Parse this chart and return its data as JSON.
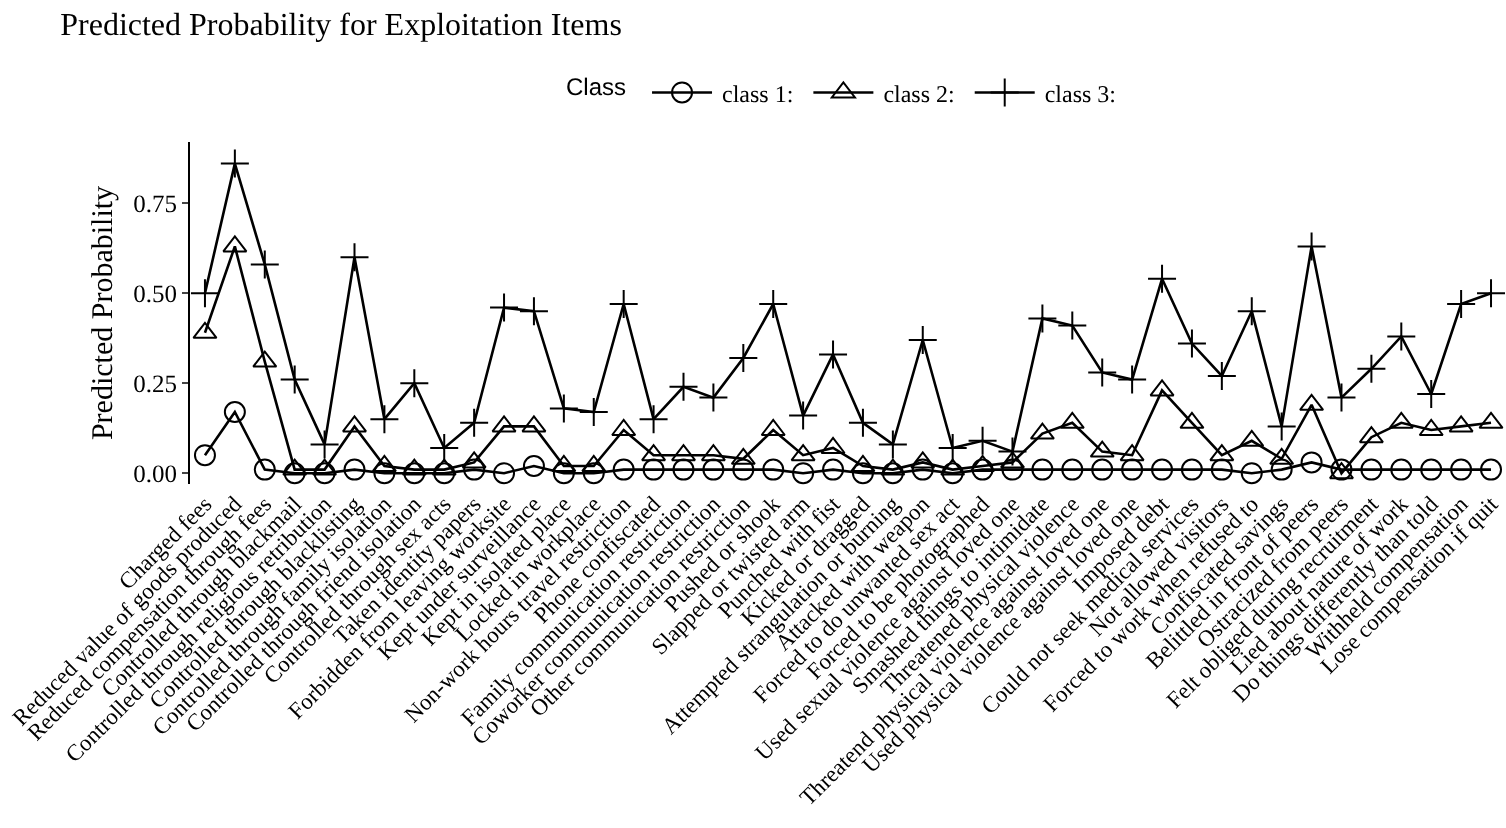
{
  "chart_data": {
    "type": "line",
    "title": "Predicted Probability for Exploitation Items",
    "ylabel": "Predicted Probability",
    "legend_title": "Class",
    "legend": "top",
    "grid": false,
    "categories": [
      "Charged fees",
      "Reduced value of goods produced",
      "Reduced compensation through fees",
      "Controlled through blackmail",
      "Controlled through religious retribution",
      "Controlled through blacklisting",
      "Controlled through family isolation",
      "Controlled through friend isolation",
      "Controlled through sex acts",
      "Taken identity papers",
      "Forbidden from leaving worksite",
      "Kept under surveillance",
      "Kept in isolated place",
      "Locked in workplace",
      "Non-work hours travel restriction",
      "Phone confiscated",
      "Family communication restriction",
      "Coworker communication restriction",
      "Other communication restriction",
      "Pushed or shook",
      "Slapped or twisted arm",
      "Punched with fist",
      "Kicked or dragged",
      "Attempted strangulation or burning",
      "Attacked with weapon",
      "Forced to do unwanted sex act",
      "Forced to be photographed",
      "Used sexual violence against loved one",
      "Smashed things to intimidate",
      "Threatened physical violence",
      "Threatend physical violence against loved one",
      "Used physical violence against loved one",
      "Imposed debt",
      "Could not seek medical services",
      "Not allowed visitors",
      "Forced to work when refused to",
      "Confiscated savings",
      "Belittled in front of peers",
      "Ostracized from peers",
      "Felt obliged during recruitment",
      "Lied about nature of work",
      "Do things differently than told",
      "Withheld compensation",
      "Lose compensation if quit"
    ],
    "series": [
      {
        "name": "class 1:",
        "color": "#000000",
        "marker": "circle",
        "values": [
          0.05,
          0.17,
          0.01,
          0.0,
          0.0,
          0.01,
          0.0,
          0.0,
          0.0,
          0.01,
          0.0,
          0.02,
          0.0,
          0.0,
          0.01,
          0.01,
          0.01,
          0.01,
          0.01,
          0.01,
          0.0,
          0.01,
          0.0,
          0.0,
          0.01,
          0.0,
          0.01,
          0.01,
          0.01,
          0.01,
          0.01,
          0.01,
          0.01,
          0.01,
          0.01,
          0.0,
          0.01,
          0.03,
          0.01,
          0.01,
          0.01,
          0.01,
          0.01,
          0.01
        ]
      },
      {
        "name": "class 2:",
        "color": "#000000",
        "marker": "triangle",
        "values": [
          0.39,
          0.63,
          0.31,
          0.01,
          0.01,
          0.13,
          0.02,
          0.01,
          0.01,
          0.03,
          0.13,
          0.13,
          0.02,
          0.02,
          0.12,
          0.05,
          0.05,
          0.05,
          0.04,
          0.12,
          0.05,
          0.07,
          0.02,
          0.01,
          0.03,
          0.01,
          0.02,
          0.03,
          0.11,
          0.14,
          0.06,
          0.05,
          0.23,
          0.14,
          0.05,
          0.09,
          0.04,
          0.19,
          0.0,
          0.1,
          0.14,
          0.12,
          0.13,
          0.14
        ]
      },
      {
        "name": "class 3:",
        "color": "#000000",
        "marker": "cross",
        "values": [
          0.5,
          0.86,
          0.58,
          0.26,
          0.08,
          0.6,
          0.15,
          0.25,
          0.07,
          0.14,
          0.46,
          0.45,
          0.18,
          0.17,
          0.47,
          0.15,
          0.24,
          0.21,
          0.32,
          0.47,
          0.16,
          0.33,
          0.14,
          0.08,
          0.37,
          0.07,
          0.09,
          0.06,
          0.43,
          0.41,
          0.28,
          0.26,
          0.54,
          0.36,
          0.27,
          0.45,
          0.13,
          0.63,
          0.21,
          0.29,
          0.38,
          0.22,
          0.47,
          0.5
        ]
      }
    ],
    "ylim": [
      -0.03,
      0.92
    ],
    "yticks": [
      {
        "value": 0,
        "label": "0.00"
      },
      {
        "value": 0.25,
        "label": "0.25"
      },
      {
        "value": 0.5,
        "label": "0.50"
      },
      {
        "value": 0.75,
        "label": "0.75"
      }
    ]
  }
}
